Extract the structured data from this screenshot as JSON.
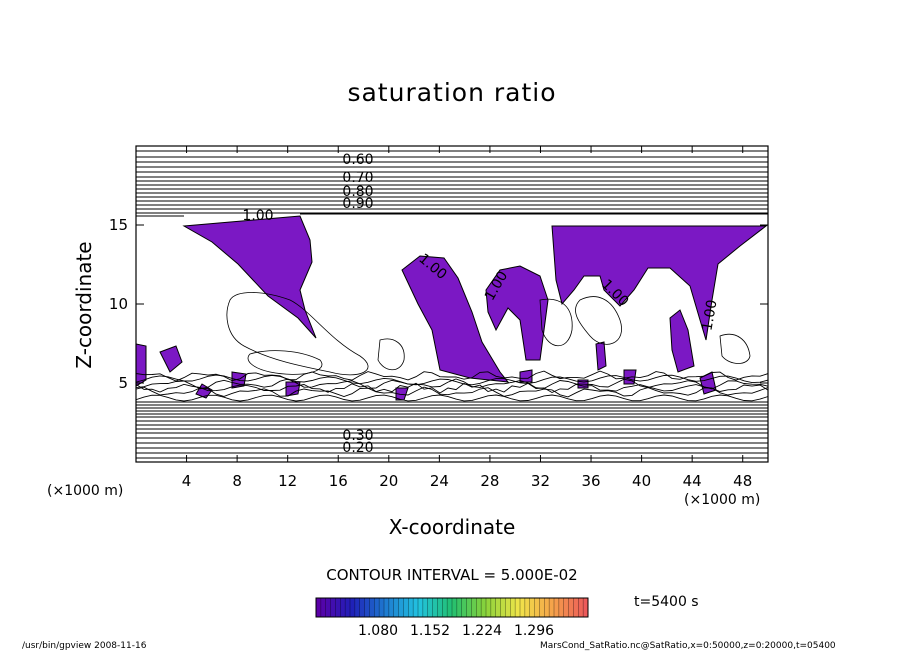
{
  "chart_data": {
    "type": "contour",
    "title": "saturation ratio",
    "xlabel": "X-coordinate",
    "ylabel": "Z-coordinate",
    "x_unit": "(×1000 m)",
    "z_unit": "(×1000 m)",
    "xlim": [
      0,
      50
    ],
    "zlim": [
      0,
      20
    ],
    "x_ticks": [
      "4",
      "8",
      "12",
      "16",
      "20",
      "24",
      "28",
      "32",
      "36",
      "40",
      "44",
      "48"
    ],
    "z_ticks": [
      "5",
      "10",
      "15"
    ],
    "contour_interval": "CONTOUR INTERVAL = 5.000E-02",
    "contour_labels": [
      "0.60",
      "0.70",
      "0.80",
      "0.90",
      "1.00",
      "0.20",
      "0.30"
    ],
    "colorbar": {
      "ticks": [
        "1.080",
        "1.152",
        "1.224",
        "1.296"
      ],
      "colors": [
        "#5b00a8",
        "#1f1fb8",
        "#1e7ad0",
        "#22c3e0",
        "#22c070",
        "#8ad33a",
        "#f0e54a",
        "#f5a34a",
        "#ec5a5a"
      ]
    },
    "fill_color": "#7b18c4",
    "time_label": "t=5400 s",
    "footer_left": "/usr/bin/gpview   2008-11-16",
    "footer_right": "MarsCond_SatRatio.nc@SatRatio,x=0:50000,z=0:20000,t=05400"
  }
}
